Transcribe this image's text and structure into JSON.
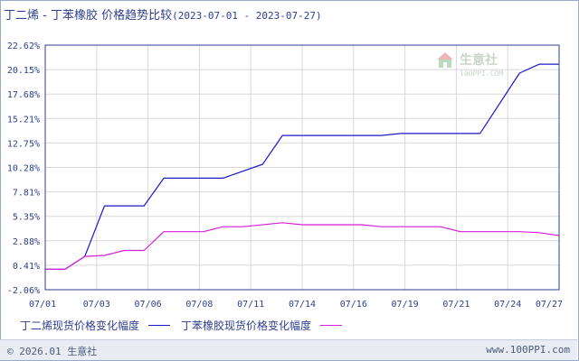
{
  "title": {
    "main": "丁二烯 - 丁苯橡胶 价格趋势比较",
    "range": "(2023-07-01 - 2023-07-27)"
  },
  "watermark": {
    "name": "生意社",
    "url": "100PPI.COM"
  },
  "colors": {
    "series1": "#1a1acc",
    "series2": "#d81ed8",
    "axis": "#2e3f8f",
    "grid": "#d8d8d8",
    "background": "#ffffff"
  },
  "legend": {
    "series1_label": "丁二烯现货价格变化幅度",
    "series2_label": "丁苯橡胶现货价格变化幅度"
  },
  "footer": {
    "copyright": "© 2026.01 生意社",
    "site": "www.100PPI.com"
  },
  "chart_data": {
    "type": "line",
    "y_ticks": [
      "22.62%",
      "20.15%",
      "17.68%",
      "15.21%",
      "12.75%",
      "10.28%",
      "7.81%",
      "5.35%",
      "2.88%",
      "0.41%",
      "-2.06%"
    ],
    "ylim": [
      -2.06,
      22.62
    ],
    "x_ticks": [
      "07/01",
      "07/03",
      "07/06",
      "07/08",
      "07/11",
      "07/14",
      "07/16",
      "07/19",
      "07/21",
      "07/24",
      "07/27"
    ],
    "xlim": [
      1,
      27
    ],
    "grid": true,
    "legend_position": "bottom",
    "series": [
      {
        "name": "丁二烯现货价格变化幅度",
        "color": "#1a1acc",
        "points": [
          {
            "day": 1,
            "value": 0
          },
          {
            "day": 2,
            "value": 0
          },
          {
            "day": 3,
            "value": 1.3
          },
          {
            "day": 4,
            "value": 6.4
          },
          {
            "day": 6,
            "value": 6.4
          },
          {
            "day": 7,
            "value": 9.2
          },
          {
            "day": 10,
            "value": 9.2
          },
          {
            "day": 12,
            "value": 10.6
          },
          {
            "day": 13,
            "value": 13.5
          },
          {
            "day": 18,
            "value": 13.5
          },
          {
            "day": 19,
            "value": 13.7
          },
          {
            "day": 22,
            "value": 13.7
          },
          {
            "day": 23,
            "value": 13.7
          },
          {
            "day": 25,
            "value": 19.8
          },
          {
            "day": 26,
            "value": 20.7
          },
          {
            "day": 27,
            "value": 20.7
          }
        ]
      },
      {
        "name": "丁苯橡胶现货价格变化幅度",
        "color": "#d81ed8",
        "points": [
          {
            "day": 1,
            "value": 0
          },
          {
            "day": 2,
            "value": 0
          },
          {
            "day": 3,
            "value": 1.3
          },
          {
            "day": 4,
            "value": 1.4
          },
          {
            "day": 5,
            "value": 1.9
          },
          {
            "day": 6,
            "value": 1.9
          },
          {
            "day": 7,
            "value": 3.8
          },
          {
            "day": 9,
            "value": 3.8
          },
          {
            "day": 10,
            "value": 4.3
          },
          {
            "day": 11,
            "value": 4.3
          },
          {
            "day": 13,
            "value": 4.7
          },
          {
            "day": 14,
            "value": 4.5
          },
          {
            "day": 17,
            "value": 4.5
          },
          {
            "day": 18,
            "value": 4.3
          },
          {
            "day": 21,
            "value": 4.3
          },
          {
            "day": 22,
            "value": 3.8
          },
          {
            "day": 25,
            "value": 3.8
          },
          {
            "day": 26,
            "value": 3.7
          },
          {
            "day": 27,
            "value": 3.4
          }
        ]
      }
    ]
  }
}
